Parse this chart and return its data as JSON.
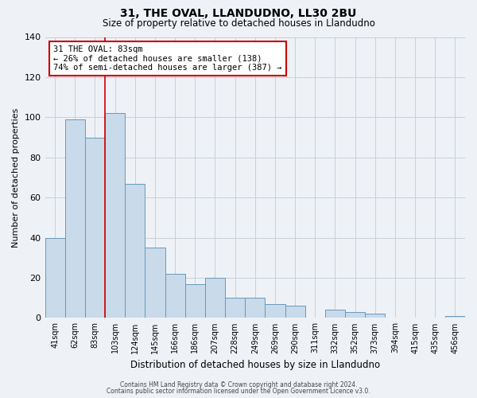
{
  "title": "31, THE OVAL, LLANDUDNO, LL30 2BU",
  "subtitle": "Size of property relative to detached houses in Llandudno",
  "xlabel": "Distribution of detached houses by size in Llandudno",
  "ylabel": "Number of detached properties",
  "bar_labels": [
    "41sqm",
    "62sqm",
    "83sqm",
    "103sqm",
    "124sqm",
    "145sqm",
    "166sqm",
    "186sqm",
    "207sqm",
    "228sqm",
    "249sqm",
    "269sqm",
    "290sqm",
    "311sqm",
    "332sqm",
    "352sqm",
    "373sqm",
    "394sqm",
    "415sqm",
    "435sqm",
    "456sqm"
  ],
  "bar_values": [
    40,
    99,
    90,
    102,
    67,
    35,
    22,
    17,
    20,
    10,
    10,
    7,
    6,
    0,
    4,
    3,
    2,
    0,
    0,
    0,
    1
  ],
  "bar_color": "#c9daea",
  "bar_edge_color": "#6699bb",
  "highlight_index": 2,
  "highlight_line_color": "#cc0000",
  "ylim": [
    0,
    140
  ],
  "yticks": [
    0,
    20,
    40,
    60,
    80,
    100,
    120,
    140
  ],
  "annotation_title": "31 THE OVAL: 83sqm",
  "annotation_line1": "← 26% of detached houses are smaller (138)",
  "annotation_line2": "74% of semi-detached houses are larger (387) →",
  "annotation_box_color": "#ffffff",
  "annotation_box_edge_color": "#cc0000",
  "background_color": "#eef2f7",
  "plot_background_color": "#eef2f7",
  "grid_color": "#c8cfd8",
  "footer_line1": "Contains HM Land Registry data © Crown copyright and database right 2024.",
  "footer_line2": "Contains public sector information licensed under the Open Government Licence v3.0."
}
